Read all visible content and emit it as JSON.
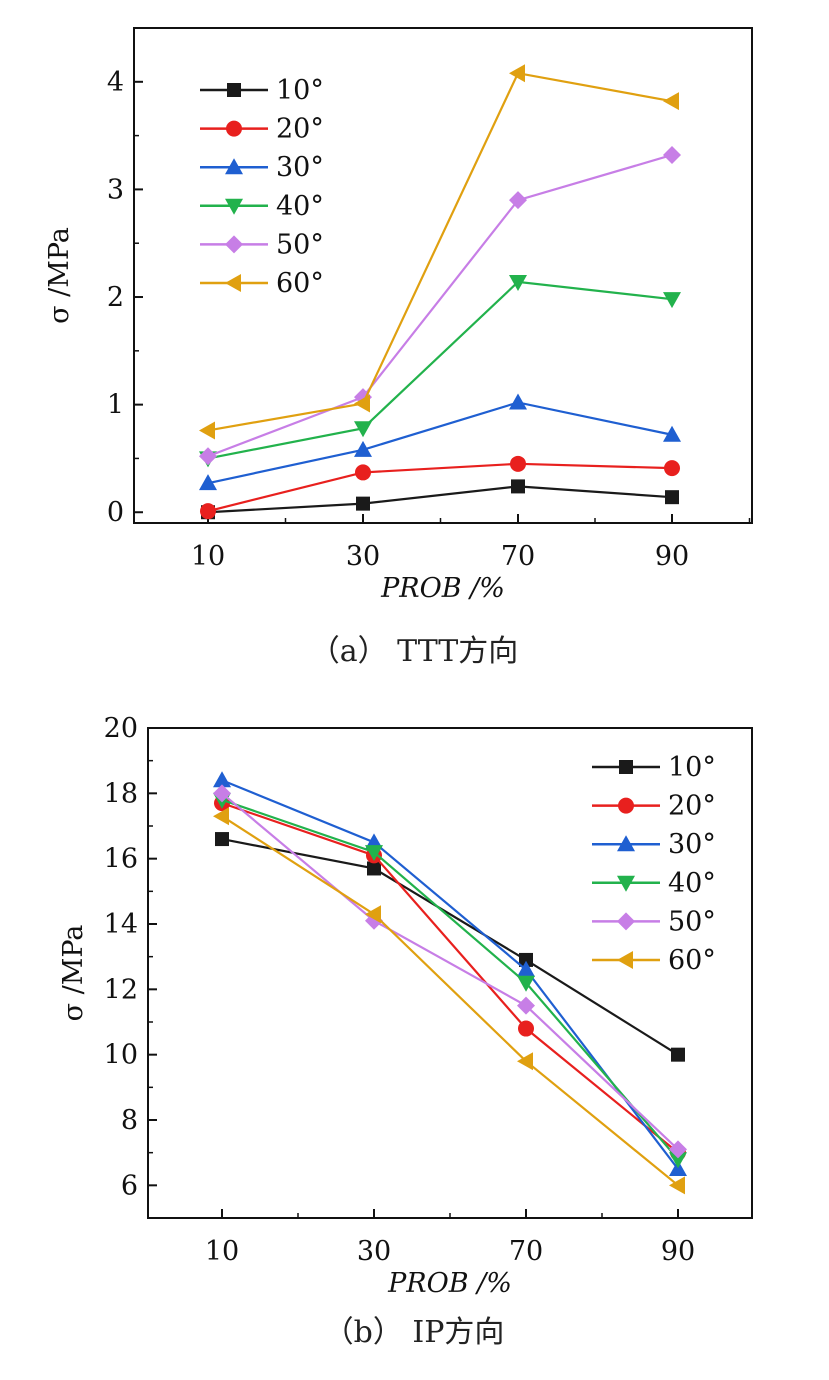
{
  "chart_data": [
    {
      "type": "line",
      "caption": "（a） TTT方向",
      "xlabel": "PROB /%",
      "ylabel": "σ /MPa",
      "categories": [
        "10",
        "30",
        "70",
        "90"
      ],
      "ylim": [
        -0.1,
        4.5
      ],
      "yticks": [
        0,
        1,
        2,
        3,
        4
      ],
      "legend_position": "top-left",
      "grid": false,
      "series": [
        {
          "name": "10°",
          "color": "#1a1a1a",
          "marker": "square",
          "values": [
            0.0,
            0.08,
            0.24,
            0.14
          ]
        },
        {
          "name": "20°",
          "color": "#e8201e",
          "marker": "circle",
          "values": [
            0.01,
            0.37,
            0.45,
            0.41
          ]
        },
        {
          "name": "30°",
          "color": "#1f5fd1",
          "marker": "triangle-up",
          "values": [
            0.27,
            0.58,
            1.02,
            0.72
          ]
        },
        {
          "name": "40°",
          "color": "#22b24c",
          "marker": "triangle-down",
          "values": [
            0.5,
            0.78,
            2.14,
            1.98
          ]
        },
        {
          "name": "50°",
          "color": "#c77ee6",
          "marker": "diamond",
          "values": [
            0.52,
            1.07,
            2.9,
            3.32
          ]
        },
        {
          "name": "60°",
          "color": "#e0a010",
          "marker": "triangle-left",
          "values": [
            0.76,
            1.01,
            4.08,
            3.82
          ]
        }
      ]
    },
    {
      "type": "line",
      "caption": "（b） IP方向",
      "xlabel": "PROB /%",
      "ylabel": "σ /MPa",
      "categories": [
        "10",
        "30",
        "70",
        "90"
      ],
      "ylim": [
        5,
        20
      ],
      "yticks": [
        6,
        8,
        10,
        12,
        14,
        16,
        18,
        20
      ],
      "legend_position": "top-right",
      "grid": false,
      "series": [
        {
          "name": "10°",
          "color": "#1a1a1a",
          "marker": "square",
          "values": [
            16.6,
            15.7,
            12.9,
            10.0
          ]
        },
        {
          "name": "20°",
          "color": "#e8201e",
          "marker": "circle",
          "values": [
            17.7,
            16.1,
            10.8,
            7.0
          ]
        },
        {
          "name": "30°",
          "color": "#1f5fd1",
          "marker": "triangle-up",
          "values": [
            18.4,
            16.5,
            12.6,
            6.5
          ]
        },
        {
          "name": "40°",
          "color": "#22b24c",
          "marker": "triangle-down",
          "values": [
            17.8,
            16.2,
            12.2,
            6.8
          ]
        },
        {
          "name": "50°",
          "color": "#c77ee6",
          "marker": "diamond",
          "values": [
            18.0,
            14.1,
            11.5,
            7.1
          ]
        },
        {
          "name": "60°",
          "color": "#e0a010",
          "marker": "triangle-left",
          "values": [
            17.3,
            14.3,
            9.8,
            6.0
          ]
        }
      ]
    }
  ]
}
